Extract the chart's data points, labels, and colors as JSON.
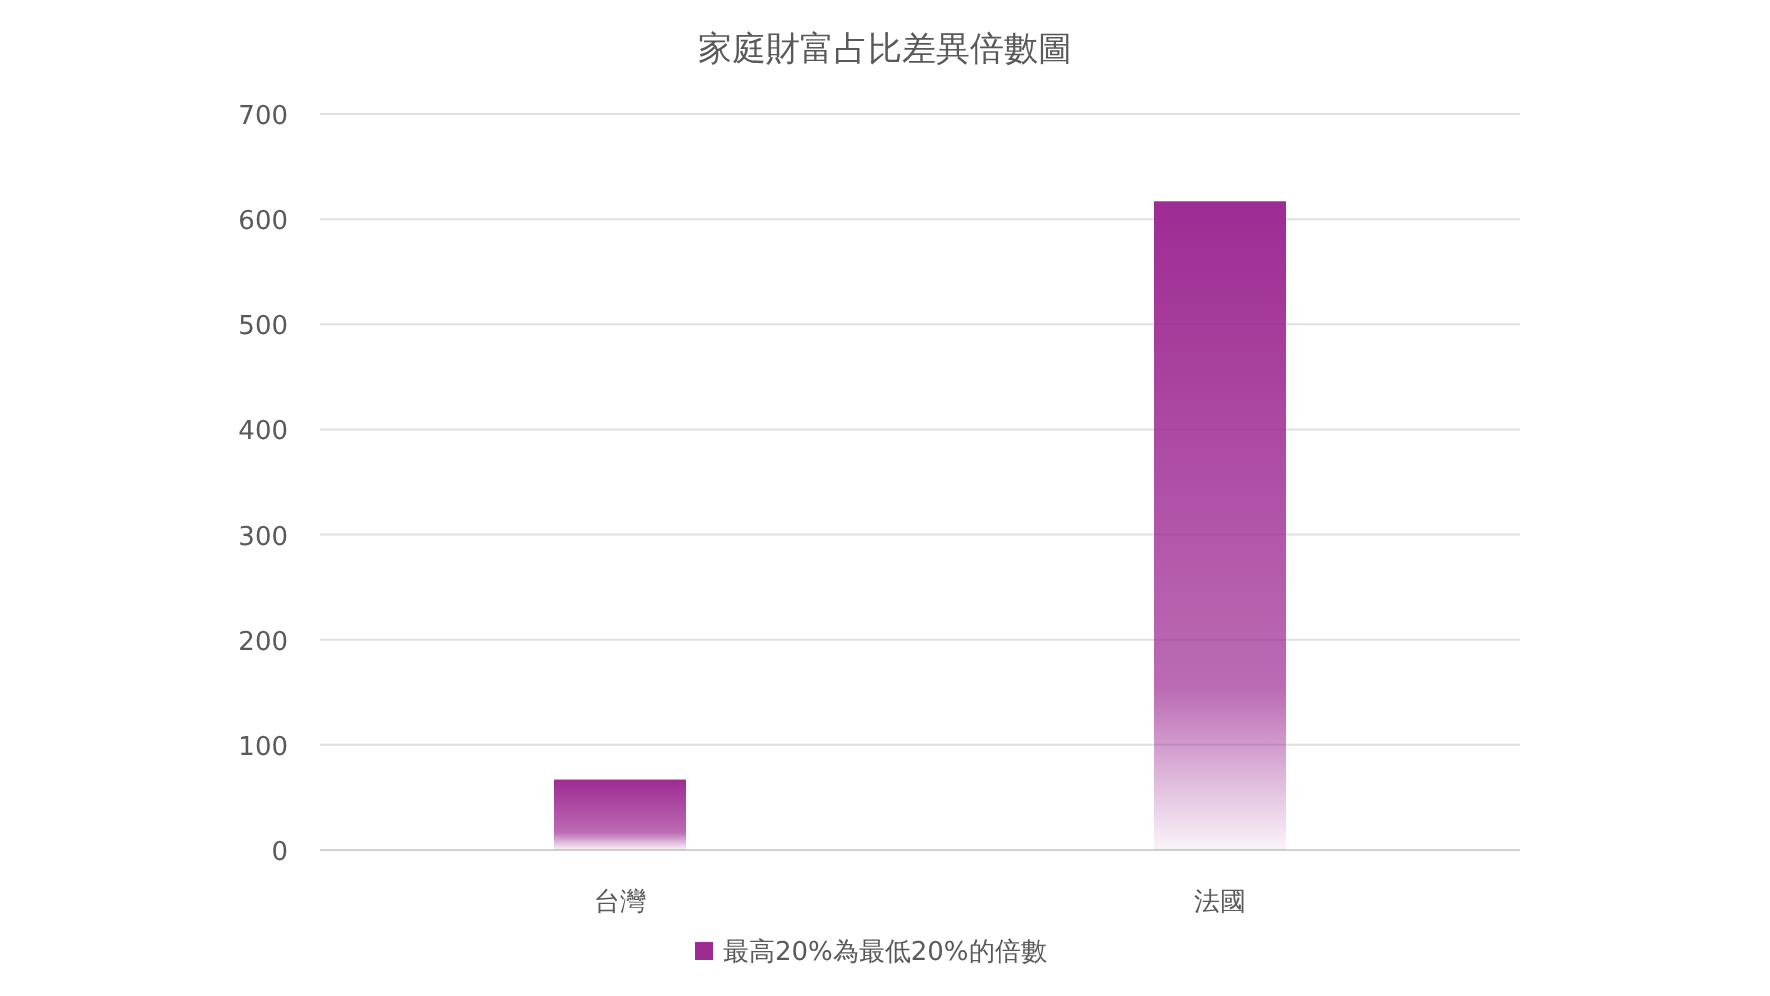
{
  "chart_data": {
    "type": "bar",
    "title": "家庭財富占比差異倍數圖",
    "categories": [
      "台灣",
      "法國"
    ],
    "series": [
      {
        "name": "最高20%為最低20%的倍數",
        "color": "#9e2b93",
        "values": [
          67,
          617
        ]
      }
    ],
    "ylim": [
      0,
      700
    ],
    "yticks": [
      0,
      100,
      200,
      300,
      400,
      500,
      600,
      700
    ],
    "grid": "y",
    "legend": "bottom"
  }
}
